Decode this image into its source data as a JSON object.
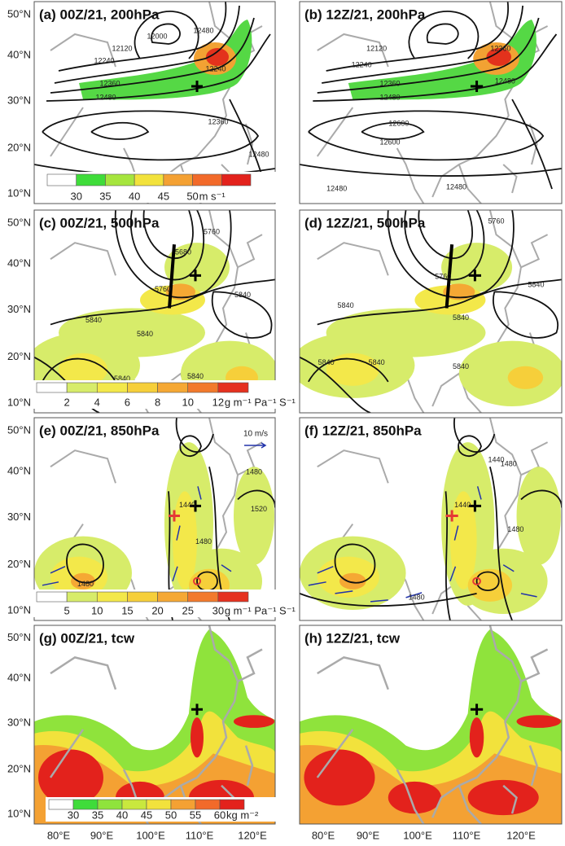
{
  "panels": [
    {
      "title": "(a) 00Z/21, 200hPa",
      "contour_labels": [
        "12000",
        "12120",
        "12240",
        "12360",
        "12480",
        "12240",
        "12360",
        "12480",
        "12480"
      ],
      "colorbar": {
        "ticks": [
          30,
          35,
          40,
          45,
          50
        ],
        "unit": "m s⁻¹",
        "colors": [
          "#ffffff",
          "#3fdc3a",
          "#a6e53e",
          "#f2e23c",
          "#f4a133",
          "#f26a2a",
          "#e3221c"
        ]
      }
    },
    {
      "title": "(b) 12Z/21, 200hPa",
      "contour_labels": [
        "12120",
        "12240",
        "12360",
        "12480",
        "12600",
        "12600",
        "12480",
        "12480",
        "12360",
        "12480"
      ]
    },
    {
      "title": "(c) 00Z/21, 500hPa",
      "contour_labels": [
        "5680",
        "5760",
        "5840",
        "5840",
        "5840",
        "5840",
        "5760",
        "5840"
      ],
      "colorbar": {
        "ticks": [
          2,
          4,
          6,
          8,
          10,
          12
        ],
        "unit": "g m⁻¹ Pa⁻¹ S⁻¹",
        "colors": [
          "#ffffff",
          "#d7ec6a",
          "#f3e84a",
          "#f6cf3a",
          "#f5a834",
          "#f27a2c",
          "#e5311f"
        ]
      }
    },
    {
      "title": "(d) 12Z/21, 500hPa",
      "contour_labels": [
        "5760",
        "5760",
        "5840",
        "5840",
        "5840",
        "5840",
        "5840",
        "5840"
      ]
    },
    {
      "title": "(e) 00Z/21, 850hPa",
      "contour_labels": [
        "1440",
        "1480",
        "1520",
        "1480",
        "1480"
      ],
      "wind_reference": "10 m/s",
      "colorbar": {
        "ticks": [
          5,
          10,
          15,
          20,
          25,
          30
        ],
        "unit": "g m⁻¹ Pa⁻¹ S⁻¹",
        "colors": [
          "#ffffff",
          "#d7ec6a",
          "#f3e84a",
          "#f6cf3a",
          "#f5a834",
          "#f27a2c",
          "#e5311f"
        ]
      }
    },
    {
      "title": "(f) 12Z/21, 850hPa",
      "contour_labels": [
        "1440",
        "1480",
        "1440",
        "1480",
        "1480"
      ]
    },
    {
      "title": "(g) 00Z/21, tcw",
      "colorbar": {
        "ticks": [
          30,
          35,
          40,
          45,
          50,
          55,
          60
        ],
        "unit": "kg m⁻²",
        "colors": [
          "#ffffff",
          "#3fdc3a",
          "#8fe33c",
          "#c9e83e",
          "#f2e23c",
          "#f4a133",
          "#f26a2a",
          "#e3221c"
        ]
      }
    },
    {
      "title": "(h) 12Z/21, tcw"
    }
  ],
  "lat_labels": [
    "50°N",
    "40°N",
    "30°N",
    "20°N",
    "10°N"
  ],
  "lon_labels": [
    "80°E",
    "90°E",
    "100°E",
    "110°E",
    "120°E"
  ]
}
